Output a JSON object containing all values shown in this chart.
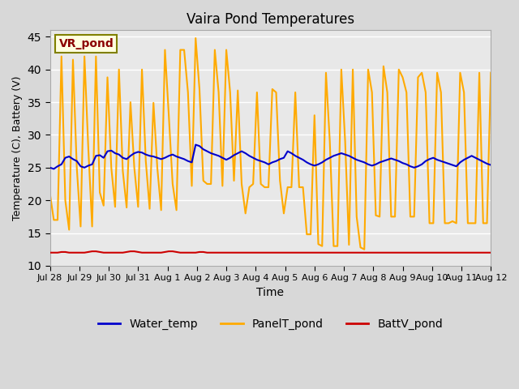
{
  "title": "Vaira Pond Temperatures",
  "xlabel": "Time",
  "ylabel": "Temperature (C), Battery (V)",
  "annotation": "VR_pond",
  "ylim": [
    10,
    46
  ],
  "yticks": [
    10,
    15,
    20,
    25,
    30,
    35,
    40,
    45
  ],
  "xtick_labels": [
    "Jul 28",
    "Jul 29",
    "Jul 30",
    "Jul 31",
    "Aug 1",
    "Aug 2",
    "Aug 3",
    "Aug 4",
    "Aug 5",
    "Aug 6",
    "Aug 7",
    "Aug 8",
    "Aug 9",
    "Aug 10",
    "Aug 11",
    "Aug 12"
  ],
  "water_color": "#0000cc",
  "panel_color": "#ffaa00",
  "batt_color": "#cc0000",
  "bg_color": "#e8e8e8",
  "plot_bg": "#f0f0f0",
  "legend_labels": [
    "Water_temp",
    "PanelT_pond",
    "BattV_pond"
  ],
  "water_temp": [
    25.0,
    24.8,
    25.2,
    25.5,
    26.5,
    26.7,
    26.3,
    26.0,
    25.2,
    25.0,
    25.3,
    25.5,
    26.8,
    26.9,
    26.5,
    27.5,
    27.6,
    27.2,
    27.0,
    26.5,
    26.3,
    26.8,
    27.2,
    27.4,
    27.3,
    27.0,
    26.8,
    26.7,
    26.5,
    26.3,
    26.5,
    26.8,
    27.0,
    26.7,
    26.5,
    26.3,
    26.0,
    25.8,
    28.5,
    28.3,
    27.8,
    27.5,
    27.2,
    27.0,
    26.8,
    26.5,
    26.2,
    26.5,
    26.9,
    27.2,
    27.5,
    27.2,
    26.8,
    26.5,
    26.2,
    26.0,
    25.8,
    25.5,
    25.8,
    26.0,
    26.3,
    26.5,
    27.5,
    27.2,
    26.8,
    26.5,
    26.2,
    25.8,
    25.5,
    25.3,
    25.5,
    25.8,
    26.2,
    26.5,
    26.8,
    27.0,
    27.2,
    27.0,
    26.8,
    26.5,
    26.2,
    26.0,
    25.8,
    25.5,
    25.3,
    25.5,
    25.8,
    26.0,
    26.2,
    26.4,
    26.2,
    26.0,
    25.7,
    25.5,
    25.2,
    25.0,
    25.2,
    25.5,
    26.0,
    26.3,
    26.5,
    26.2,
    26.0,
    25.8,
    25.6,
    25.4,
    25.2,
    25.8,
    26.2,
    26.5,
    26.8,
    26.5,
    26.2,
    25.9,
    25.6,
    25.4
  ],
  "panel_temp": [
    21.0,
    17.0,
    17.0,
    42.0,
    20.0,
    15.5,
    41.5,
    25.0,
    16.0,
    42.0,
    28.0,
    16.0,
    42.0,
    21.2,
    19.2,
    38.8,
    25.0,
    19.0,
    40.0,
    24.5,
    18.9,
    35.0,
    25.0,
    19.0,
    40.0,
    26.0,
    18.7,
    34.9,
    25.0,
    18.5,
    43.0,
    33.0,
    22.5,
    18.5,
    43.0,
    43.0,
    36.5,
    22.2,
    44.8,
    37.0,
    23.0,
    22.5,
    22.5,
    43.0,
    36.5,
    22.2,
    43.0,
    36.5,
    23.0,
    36.8,
    22.5,
    18.0,
    22.0,
    22.5,
    36.5,
    22.5,
    22.0,
    22.0,
    37.0,
    36.5,
    23.0,
    18.0,
    22.0,
    22.0,
    36.5,
    22.0,
    22.0,
    14.8,
    14.8,
    33.0,
    13.3,
    13.0,
    39.5,
    29.0,
    13.0,
    13.0,
    40.0,
    29.0,
    13.2,
    40.0,
    17.5,
    12.8,
    12.5,
    40.0,
    36.5,
    17.7,
    17.5,
    40.5,
    36.5,
    17.5,
    17.5,
    40.0,
    38.8,
    36.5,
    17.5,
    17.5,
    38.8,
    39.5,
    36.5,
    16.5,
    16.5,
    39.5,
    36.5,
    16.5,
    16.5,
    16.8,
    16.5,
    39.5,
    36.5,
    16.5,
    16.5,
    16.5,
    39.5,
    16.5,
    16.5,
    39.5
  ],
  "batt_volt": [
    12.0,
    12.0,
    12.0,
    12.1,
    12.1,
    12.0,
    12.0,
    12.0,
    12.0,
    12.0,
    12.1,
    12.2,
    12.2,
    12.1,
    12.0,
    12.0,
    12.0,
    12.0,
    12.0,
    12.0,
    12.1,
    12.2,
    12.2,
    12.1,
    12.0,
    12.0,
    12.0,
    12.0,
    12.0,
    12.0,
    12.1,
    12.2,
    12.2,
    12.1,
    12.0,
    12.0,
    12.0,
    12.0,
    12.0,
    12.1,
    12.1,
    12.0,
    12.0,
    12.0,
    12.0,
    12.0,
    12.0,
    12.0,
    12.0,
    12.0,
    12.0,
    12.0,
    12.0,
    12.0,
    12.0,
    12.0,
    12.0,
    12.0,
    12.0,
    12.0,
    12.0,
    12.0,
    12.0,
    12.0,
    12.0,
    12.0,
    12.0,
    12.0,
    12.0,
    12.0,
    12.0,
    12.0,
    12.0,
    12.0,
    12.0,
    12.0,
    12.0,
    12.0,
    12.0,
    12.0,
    12.0,
    12.0,
    12.0,
    12.0,
    12.0,
    12.0,
    12.0,
    12.0,
    12.0,
    12.0,
    12.0,
    12.0,
    12.0,
    12.0,
    12.0,
    12.0,
    12.0,
    12.0,
    12.0,
    12.0,
    12.0,
    12.0,
    12.0,
    12.0,
    12.0,
    12.0,
    12.0,
    12.0,
    12.0,
    12.0,
    12.0,
    12.0,
    12.0,
    12.0,
    12.0,
    12.0
  ]
}
